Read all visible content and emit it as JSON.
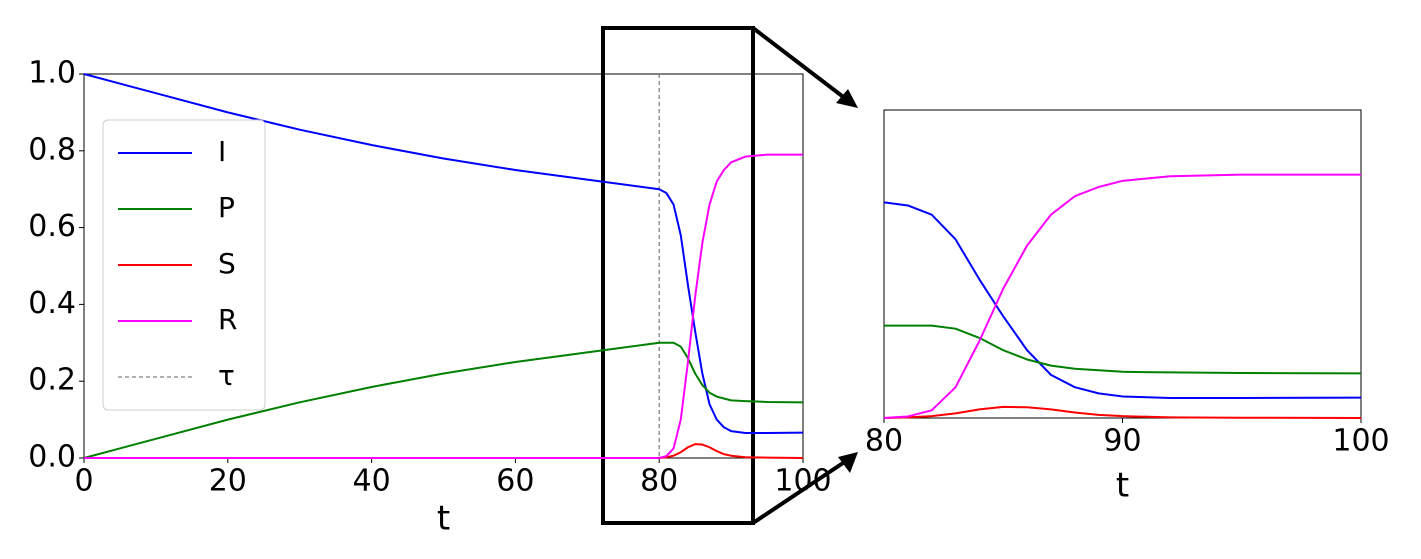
{
  "chart_data": [
    {
      "type": "line",
      "x_label": "t",
      "x": [
        0,
        10,
        20,
        30,
        40,
        50,
        60,
        70,
        80,
        81,
        82,
        83,
        84,
        85,
        86,
        87,
        88,
        89,
        90,
        92,
        95,
        100
      ],
      "series": [
        {
          "name": "I",
          "color": "#0000ff",
          "values": [
            1.0,
            0.95,
            0.9,
            0.855,
            0.815,
            0.78,
            0.75,
            0.725,
            0.7,
            0.69,
            0.66,
            0.58,
            0.45,
            0.33,
            0.22,
            0.14,
            0.1,
            0.08,
            0.07,
            0.065,
            0.065,
            0.066
          ]
        },
        {
          "name": "P",
          "color": "#008000",
          "values": [
            0,
            0.05,
            0.1,
            0.145,
            0.185,
            0.22,
            0.25,
            0.275,
            0.3,
            0.3,
            0.3,
            0.29,
            0.26,
            0.22,
            0.19,
            0.17,
            0.16,
            0.155,
            0.15,
            0.148,
            0.146,
            0.145
          ]
        },
        {
          "name": "S",
          "color": "#ff0000",
          "values": [
            0,
            0,
            0,
            0,
            0,
            0,
            0,
            0,
            0,
            0.002,
            0.006,
            0.015,
            0.028,
            0.036,
            0.035,
            0.028,
            0.018,
            0.01,
            0.006,
            0.002,
            0.001,
            0
          ]
        },
        {
          "name": "R",
          "color": "#ff00ff",
          "values": [
            0,
            0,
            0,
            0,
            0,
            0,
            0,
            0,
            0,
            0.005,
            0.025,
            0.1,
            0.25,
            0.42,
            0.56,
            0.66,
            0.72,
            0.75,
            0.77,
            0.785,
            0.79,
            0.79
          ]
        }
      ],
      "vlines": [
        {
          "name": "τ",
          "x": 80,
          "color": "#808080",
          "style": "dashed"
        }
      ],
      "xlim": [
        0,
        100
      ],
      "xticks": [
        0,
        20,
        40,
        60,
        80,
        100
      ],
      "ylim": [
        0,
        1.0
      ],
      "yticks": [
        {
          "value": 0,
          "label": "0.0"
        },
        0.2,
        0.4,
        0.6,
        0.8,
        {
          "value": 1,
          "label": "1.0"
        }
      ],
      "legend": "upper left"
    },
    {
      "type": "line",
      "x_label": "t",
      "x": [
        80,
        81,
        82,
        83,
        84,
        85,
        86,
        87,
        88,
        89,
        90,
        92,
        95,
        100
      ],
      "series": [
        {
          "name": "I",
          "color": "#0000ff",
          "values": [
            0.7,
            0.69,
            0.66,
            0.58,
            0.45,
            0.33,
            0.22,
            0.14,
            0.1,
            0.08,
            0.07,
            0.065,
            0.065,
            0.066
          ]
        },
        {
          "name": "P",
          "color": "#008000",
          "values": [
            0.3,
            0.3,
            0.3,
            0.29,
            0.26,
            0.22,
            0.19,
            0.17,
            0.16,
            0.155,
            0.15,
            0.148,
            0.146,
            0.145
          ]
        },
        {
          "name": "S",
          "color": "#ff0000",
          "values": [
            0,
            0.002,
            0.006,
            0.015,
            0.028,
            0.036,
            0.035,
            0.028,
            0.018,
            0.01,
            0.006,
            0.002,
            0.001,
            0
          ]
        },
        {
          "name": "R",
          "color": "#ff00ff",
          "values": [
            0,
            0.005,
            0.025,
            0.1,
            0.25,
            0.42,
            0.56,
            0.66,
            0.72,
            0.75,
            0.77,
            0.785,
            0.79,
            0.79
          ]
        }
      ],
      "xlim": [
        80,
        100
      ],
      "xticks": [
        80,
        90,
        100
      ],
      "ylim": [
        0,
        1.0
      ]
    }
  ]
}
